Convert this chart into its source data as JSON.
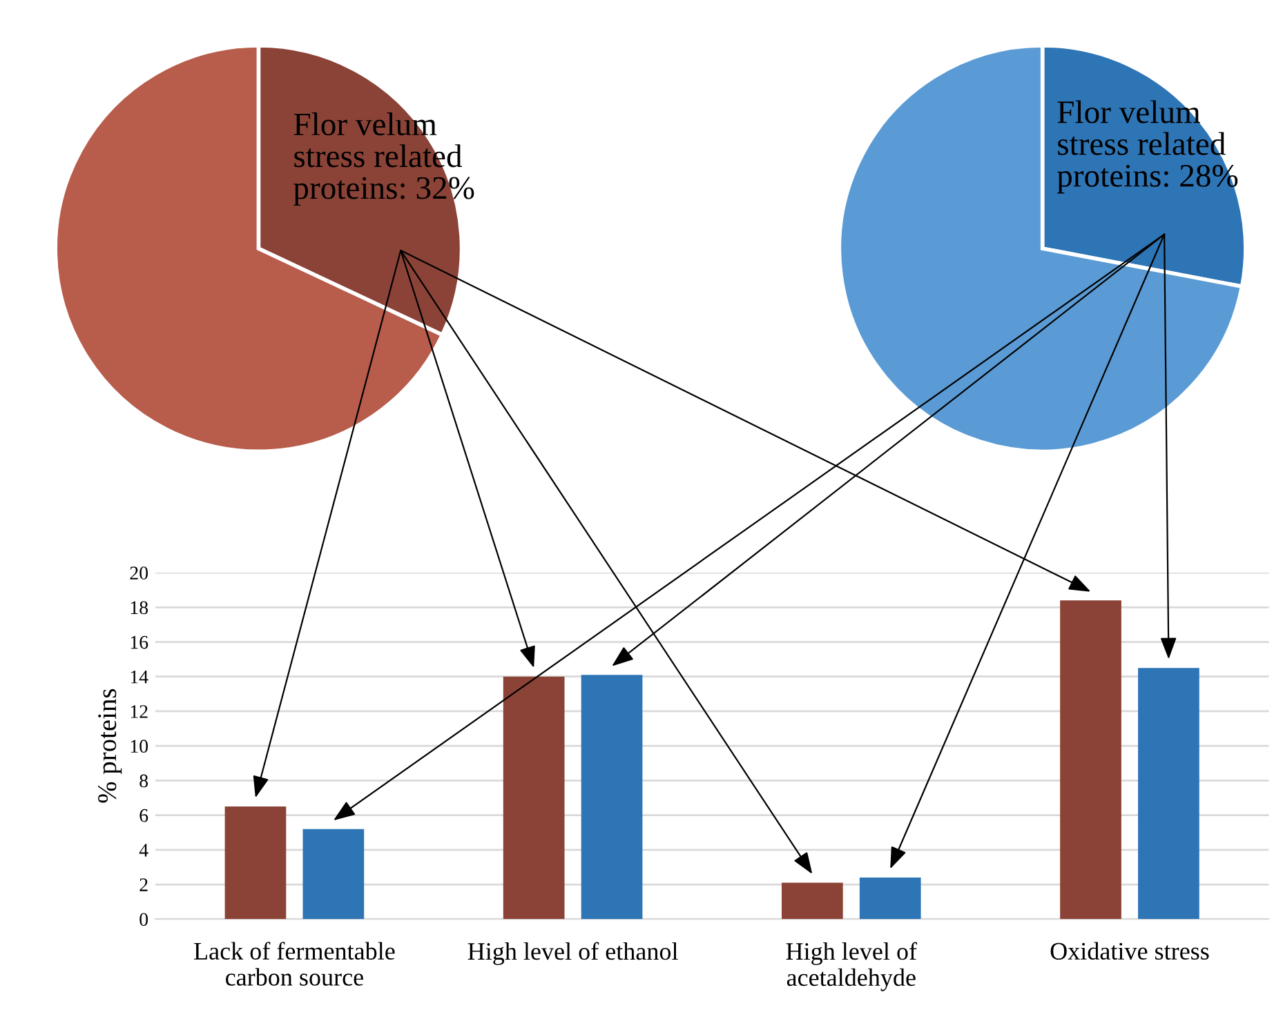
{
  "chart_data": [
    {
      "type": "pie",
      "categories": [
        "Flor velum\nstress related\nproteins: 32%",
        null
      ],
      "values": [
        32,
        68
      ],
      "colors": [
        "#8b4337",
        "#b85c4c"
      ]
    },
    {
      "type": "pie",
      "categories": [
        "Flor velum\nstress related\nproteins: 28%",
        null
      ],
      "values": [
        28,
        72
      ],
      "colors": [
        "#2e75b6",
        "#5b9bd5"
      ]
    },
    {
      "type": "bar",
      "ylabel": "% proteins",
      "categories": [
        "Lack of fermentable\ncarbon source",
        "High level of ethanol",
        "High level of\nacetaldehyde",
        "Oxidative stress"
      ],
      "series": [
        {
          "color": "#8b4337",
          "values": [
            6.5,
            14.0,
            2.1,
            18.4
          ]
        },
        {
          "color": "#2e75b6",
          "values": [
            5.2,
            14.1,
            2.4,
            14.5
          ]
        }
      ],
      "ylim": [
        0,
        20
      ],
      "yticks": [
        0,
        2,
        4,
        6,
        8,
        10,
        12,
        14,
        16,
        18,
        20
      ],
      "grid": "y",
      "legend": false
    }
  ]
}
